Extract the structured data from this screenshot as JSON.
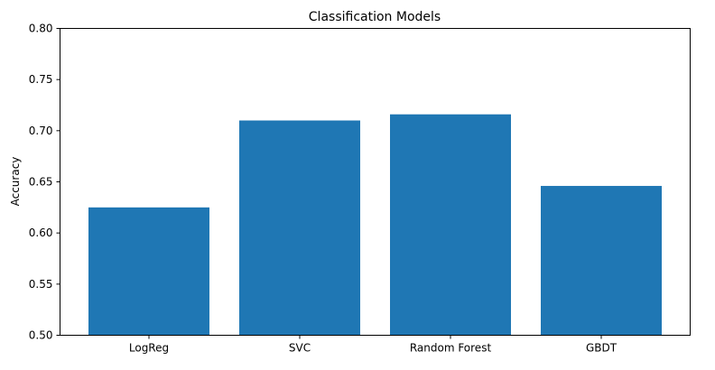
{
  "chart_data": {
    "type": "bar",
    "title": "Classification Models",
    "xlabel": "",
    "ylabel": "Accuracy",
    "categories": [
      "LogReg",
      "SVC",
      "Random Forest",
      "GBDT"
    ],
    "values": [
      0.625,
      0.71,
      0.716,
      0.646
    ],
    "ylim": [
      0.5,
      0.8
    ],
    "yticks": [
      "0.50",
      "0.55",
      "0.60",
      "0.65",
      "0.70",
      "0.75",
      "0.80"
    ],
    "bar_color": "#1f77b4",
    "grid": false
  }
}
